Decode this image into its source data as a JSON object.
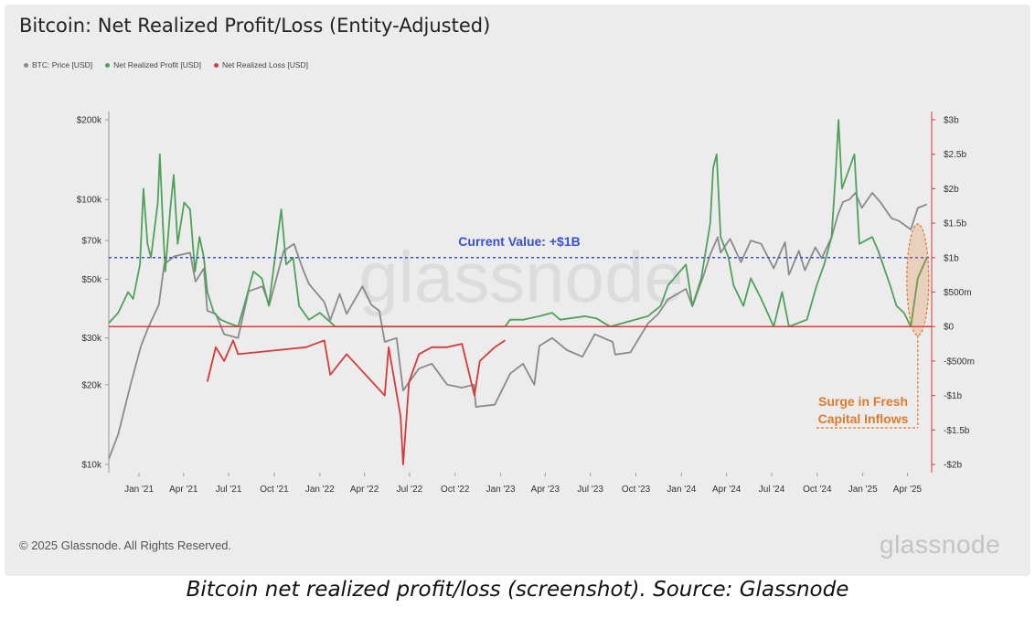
{
  "title": "Bitcoin: Net Realized Profit/Loss (Entity-Adjusted)",
  "legend": [
    {
      "label": "BTC: Price [USD]",
      "color": "#8a8a8a"
    },
    {
      "label": "Net Realized Profit [USD]",
      "color": "#4ea15a"
    },
    {
      "label": "Net Realized Loss [USD]",
      "color": "#d63a3a"
    }
  ],
  "footer": "© 2025 Glassnode. All Rights Reserved.",
  "logo": "glassnode",
  "watermark": "glassnode",
  "caption": "Bitcoin net realized profit/loss (screenshot). Source: Glassnode",
  "annotations": {
    "current_value": "Current Value: +$1B",
    "current_value_color": "#3a4fd6",
    "surge_line1": "Surge in Fresh",
    "surge_line2": "Capital Inflows",
    "surge_color": "#e07a2c"
  },
  "chart_data": {
    "type": "line",
    "x_ticks": [
      "Jan '21",
      "Apr '21",
      "Jul '21",
      "Oct '21",
      "Jan '22",
      "Apr '22",
      "Jul '22",
      "Oct '22",
      "Jan '23",
      "Apr '23",
      "Jul '23",
      "Oct '23",
      "Jan '24",
      "Apr '24",
      "Jul '24",
      "Oct '24",
      "Jan '25",
      "Apr '25"
    ],
    "y_left": {
      "scale": "log",
      "range": [
        10000,
        200000
      ],
      "ticks": [
        {
          "v": 10000,
          "label": "$10k"
        },
        {
          "v": 20000,
          "label": "$20k"
        },
        {
          "v": 30000,
          "label": "$30k"
        },
        {
          "v": 50000,
          "label": "$50k"
        },
        {
          "v": 70000,
          "label": "$70k"
        },
        {
          "v": 100000,
          "label": "$100k"
        },
        {
          "v": 200000,
          "label": "$200k"
        }
      ]
    },
    "y_right": {
      "scale": "linear",
      "range": [
        -2000000000,
        3000000000
      ],
      "ticks": [
        {
          "v": 3000000000,
          "label": "$3b"
        },
        {
          "v": 2500000000,
          "label": "$2.5b"
        },
        {
          "v": 2000000000,
          "label": "$2b"
        },
        {
          "v": 1500000000,
          "label": "$1.5b"
        },
        {
          "v": 1000000000,
          "label": "$1b"
        },
        {
          "v": 500000000,
          "label": "$500m"
        },
        {
          "v": 0,
          "label": "$0"
        },
        {
          "v": -500000000,
          "label": "-$500m"
        },
        {
          "v": -1000000000,
          "label": "-$1b"
        },
        {
          "v": -1500000000,
          "label": "-$1.5b"
        },
        {
          "v": -2000000000,
          "label": "-$2b"
        }
      ]
    },
    "current_value": 1000000000,
    "series": [
      {
        "name": "BTC: Price [USD]",
        "color": "#8a8a8a",
        "axis": "left",
        "points": [
          [
            "2020-11-01",
            10500
          ],
          [
            "2020-11-20",
            13000
          ],
          [
            "2020-12-15",
            20000
          ],
          [
            "2021-01-05",
            28000
          ],
          [
            "2021-01-20",
            33000
          ],
          [
            "2021-02-10",
            40000
          ],
          [
            "2021-02-21",
            57000
          ],
          [
            "2021-03-13",
            61000
          ],
          [
            "2021-04-14",
            63000
          ],
          [
            "2021-04-25",
            49000
          ],
          [
            "2021-05-12",
            55000
          ],
          [
            "2021-05-19",
            38000
          ],
          [
            "2021-06-05",
            37000
          ],
          [
            "2021-06-22",
            31000
          ],
          [
            "2021-07-20",
            30000
          ],
          [
            "2021-08-10",
            45000
          ],
          [
            "2021-09-07",
            47000
          ],
          [
            "2021-09-21",
            40000
          ],
          [
            "2021-10-20",
            64000
          ],
          [
            "2021-11-10",
            68000
          ],
          [
            "2021-11-27",
            55000
          ],
          [
            "2021-12-10",
            48000
          ],
          [
            "2022-01-10",
            41000
          ],
          [
            "2022-01-22",
            35000
          ],
          [
            "2022-02-10",
            44000
          ],
          [
            "2022-02-24",
            37000
          ],
          [
            "2022-03-28",
            47000
          ],
          [
            "2022-04-15",
            40000
          ],
          [
            "2022-05-01",
            38000
          ],
          [
            "2022-05-12",
            29000
          ],
          [
            "2022-06-05",
            30000
          ],
          [
            "2022-06-18",
            19000
          ],
          [
            "2022-07-20",
            23000
          ],
          [
            "2022-08-15",
            24000
          ],
          [
            "2022-09-15",
            20000
          ],
          [
            "2022-10-15",
            19500
          ],
          [
            "2022-11-08",
            20000
          ],
          [
            "2022-11-12",
            16500
          ],
          [
            "2022-12-20",
            16800
          ],
          [
            "2023-01-20",
            22000
          ],
          [
            "2023-02-15",
            24000
          ],
          [
            "2023-03-10",
            20000
          ],
          [
            "2023-03-20",
            28000
          ],
          [
            "2023-04-15",
            30000
          ],
          [
            "2023-05-15",
            27000
          ],
          [
            "2023-06-15",
            25500
          ],
          [
            "2023-07-10",
            31000
          ],
          [
            "2023-08-15",
            29000
          ],
          [
            "2023-08-20",
            26000
          ],
          [
            "2023-09-20",
            26500
          ],
          [
            "2023-10-25",
            34000
          ],
          [
            "2023-11-15",
            37000
          ],
          [
            "2023-12-05",
            42000
          ],
          [
            "2024-01-10",
            46000
          ],
          [
            "2024-01-23",
            39500
          ],
          [
            "2024-02-15",
            52000
          ],
          [
            "2024-02-28",
            62000
          ],
          [
            "2024-03-14",
            72000
          ],
          [
            "2024-03-20",
            63000
          ],
          [
            "2024-04-08",
            71000
          ],
          [
            "2024-04-30",
            58000
          ],
          [
            "2024-05-20",
            70000
          ],
          [
            "2024-06-10",
            68000
          ],
          [
            "2024-07-05",
            55000
          ],
          [
            "2024-07-28",
            69000
          ],
          [
            "2024-08-05",
            52000
          ],
          [
            "2024-08-25",
            64000
          ],
          [
            "2024-09-06",
            54000
          ],
          [
            "2024-09-27",
            66000
          ],
          [
            "2024-10-10",
            60000
          ],
          [
            "2024-10-30",
            72000
          ],
          [
            "2024-11-12",
            88000
          ],
          [
            "2024-11-22",
            98000
          ],
          [
            "2024-12-05",
            100000
          ],
          [
            "2024-12-17",
            106000
          ],
          [
            "2024-12-30",
            93000
          ],
          [
            "2025-01-20",
            106000
          ],
          [
            "2025-02-05",
            98000
          ],
          [
            "2025-02-28",
            85000
          ],
          [
            "2025-03-15",
            83000
          ],
          [
            "2025-04-08",
            77000
          ],
          [
            "2025-04-22",
            93000
          ],
          [
            "2025-05-05",
            95000
          ],
          [
            "2025-05-10",
            96000
          ]
        ]
      },
      {
        "name": "Net Realized Profit [USD]",
        "color": "#4ea15a",
        "axis": "right",
        "points": [
          [
            "2020-11-01",
            50000000
          ],
          [
            "2020-11-20",
            200000000
          ],
          [
            "2020-12-10",
            500000000
          ],
          [
            "2020-12-20",
            400000000
          ],
          [
            "2021-01-03",
            900000000
          ],
          [
            "2021-01-10",
            2000000000
          ],
          [
            "2021-01-18",
            1200000000
          ],
          [
            "2021-01-25",
            1000000000
          ],
          [
            "2021-02-08",
            1800000000
          ],
          [
            "2021-02-12",
            2500000000
          ],
          [
            "2021-02-18",
            1500000000
          ],
          [
            "2021-02-23",
            800000000
          ],
          [
            "2021-03-05",
            1700000000
          ],
          [
            "2021-03-12",
            2200000000
          ],
          [
            "2021-03-20",
            1200000000
          ],
          [
            "2021-04-02",
            1800000000
          ],
          [
            "2021-04-14",
            1700000000
          ],
          [
            "2021-04-24",
            800000000
          ],
          [
            "2021-05-03",
            1300000000
          ],
          [
            "2021-05-12",
            1000000000
          ],
          [
            "2021-05-19",
            500000000
          ],
          [
            "2021-06-01",
            200000000
          ],
          [
            "2021-06-15",
            100000000
          ],
          [
            "2021-07-01",
            50000000
          ],
          [
            "2021-07-20",
            0
          ],
          [
            "2021-08-05",
            400000000
          ],
          [
            "2021-08-20",
            800000000
          ],
          [
            "2021-09-06",
            700000000
          ],
          [
            "2021-09-20",
            300000000
          ],
          [
            "2021-10-06",
            1200000000
          ],
          [
            "2021-10-15",
            1700000000
          ],
          [
            "2021-10-25",
            900000000
          ],
          [
            "2021-11-08",
            1000000000
          ],
          [
            "2021-11-20",
            300000000
          ],
          [
            "2021-12-10",
            100000000
          ],
          [
            "2022-01-01",
            200000000
          ],
          [
            "2022-02-01",
            0
          ],
          [
            "2022-03-28",
            0
          ],
          [
            "2022-04-10",
            0
          ],
          [
            "2022-09-01",
            0
          ],
          [
            "2023-01-10",
            0
          ],
          [
            "2023-01-20",
            100000000
          ],
          [
            "2023-02-15",
            100000000
          ],
          [
            "2023-03-20",
            150000000
          ],
          [
            "2023-04-15",
            200000000
          ],
          [
            "2023-05-01",
            100000000
          ],
          [
            "2023-06-20",
            150000000
          ],
          [
            "2023-07-13",
            120000000
          ],
          [
            "2023-08-10",
            0
          ],
          [
            "2023-10-25",
            150000000
          ],
          [
            "2023-11-20",
            300000000
          ],
          [
            "2023-12-05",
            600000000
          ],
          [
            "2024-01-10",
            900000000
          ],
          [
            "2024-01-23",
            300000000
          ],
          [
            "2024-02-10",
            700000000
          ],
          [
            "2024-02-28",
            1500000000
          ],
          [
            "2024-03-05",
            2300000000
          ],
          [
            "2024-03-12",
            2500000000
          ],
          [
            "2024-03-20",
            1300000000
          ],
          [
            "2024-04-05",
            1000000000
          ],
          [
            "2024-04-15",
            600000000
          ],
          [
            "2024-05-05",
            300000000
          ],
          [
            "2024-05-20",
            700000000
          ],
          [
            "2024-06-10",
            400000000
          ],
          [
            "2024-07-05",
            0
          ],
          [
            "2024-07-22",
            500000000
          ],
          [
            "2024-08-05",
            0
          ],
          [
            "2024-09-10",
            100000000
          ],
          [
            "2024-09-30",
            600000000
          ],
          [
            "2024-10-15",
            900000000
          ],
          [
            "2024-10-30",
            1300000000
          ],
          [
            "2024-11-07",
            2200000000
          ],
          [
            "2024-11-13",
            3000000000
          ],
          [
            "2024-11-20",
            2000000000
          ],
          [
            "2024-12-05",
            2300000000
          ],
          [
            "2024-12-15",
            2500000000
          ],
          [
            "2024-12-25",
            1200000000
          ],
          [
            "2025-01-20",
            1300000000
          ],
          [
            "2025-02-01",
            1100000000
          ],
          [
            "2025-02-25",
            600000000
          ],
          [
            "2025-03-10",
            300000000
          ],
          [
            "2025-03-25",
            200000000
          ],
          [
            "2025-04-08",
            0
          ],
          [
            "2025-04-22",
            700000000
          ],
          [
            "2025-05-10",
            1000000000
          ]
        ]
      },
      {
        "name": "Net Realized Loss [USD]",
        "color": "#d63a3a",
        "axis": "right",
        "points": [
          [
            "2021-05-19",
            -800000000
          ],
          [
            "2021-06-05",
            -300000000
          ],
          [
            "2021-06-22",
            -500000000
          ],
          [
            "2021-07-10",
            -200000000
          ],
          [
            "2021-07-20",
            -400000000
          ],
          [
            "2021-12-04",
            -300000000
          ],
          [
            "2022-01-10",
            -200000000
          ],
          [
            "2022-01-22",
            -700000000
          ],
          [
            "2022-02-24",
            -400000000
          ],
          [
            "2022-05-12",
            -1000000000
          ],
          [
            "2022-05-20",
            -300000000
          ],
          [
            "2022-06-13",
            -1300000000
          ],
          [
            "2022-06-18",
            -2000000000
          ],
          [
            "2022-06-30",
            -800000000
          ],
          [
            "2022-07-20",
            -400000000
          ],
          [
            "2022-08-15",
            -300000000
          ],
          [
            "2022-09-15",
            -300000000
          ],
          [
            "2022-10-15",
            -250000000
          ],
          [
            "2022-11-09",
            -1000000000
          ],
          [
            "2022-11-20",
            -500000000
          ],
          [
            "2022-12-20",
            -300000000
          ],
          [
            "2023-01-10",
            -200000000
          ]
        ]
      }
    ]
  }
}
